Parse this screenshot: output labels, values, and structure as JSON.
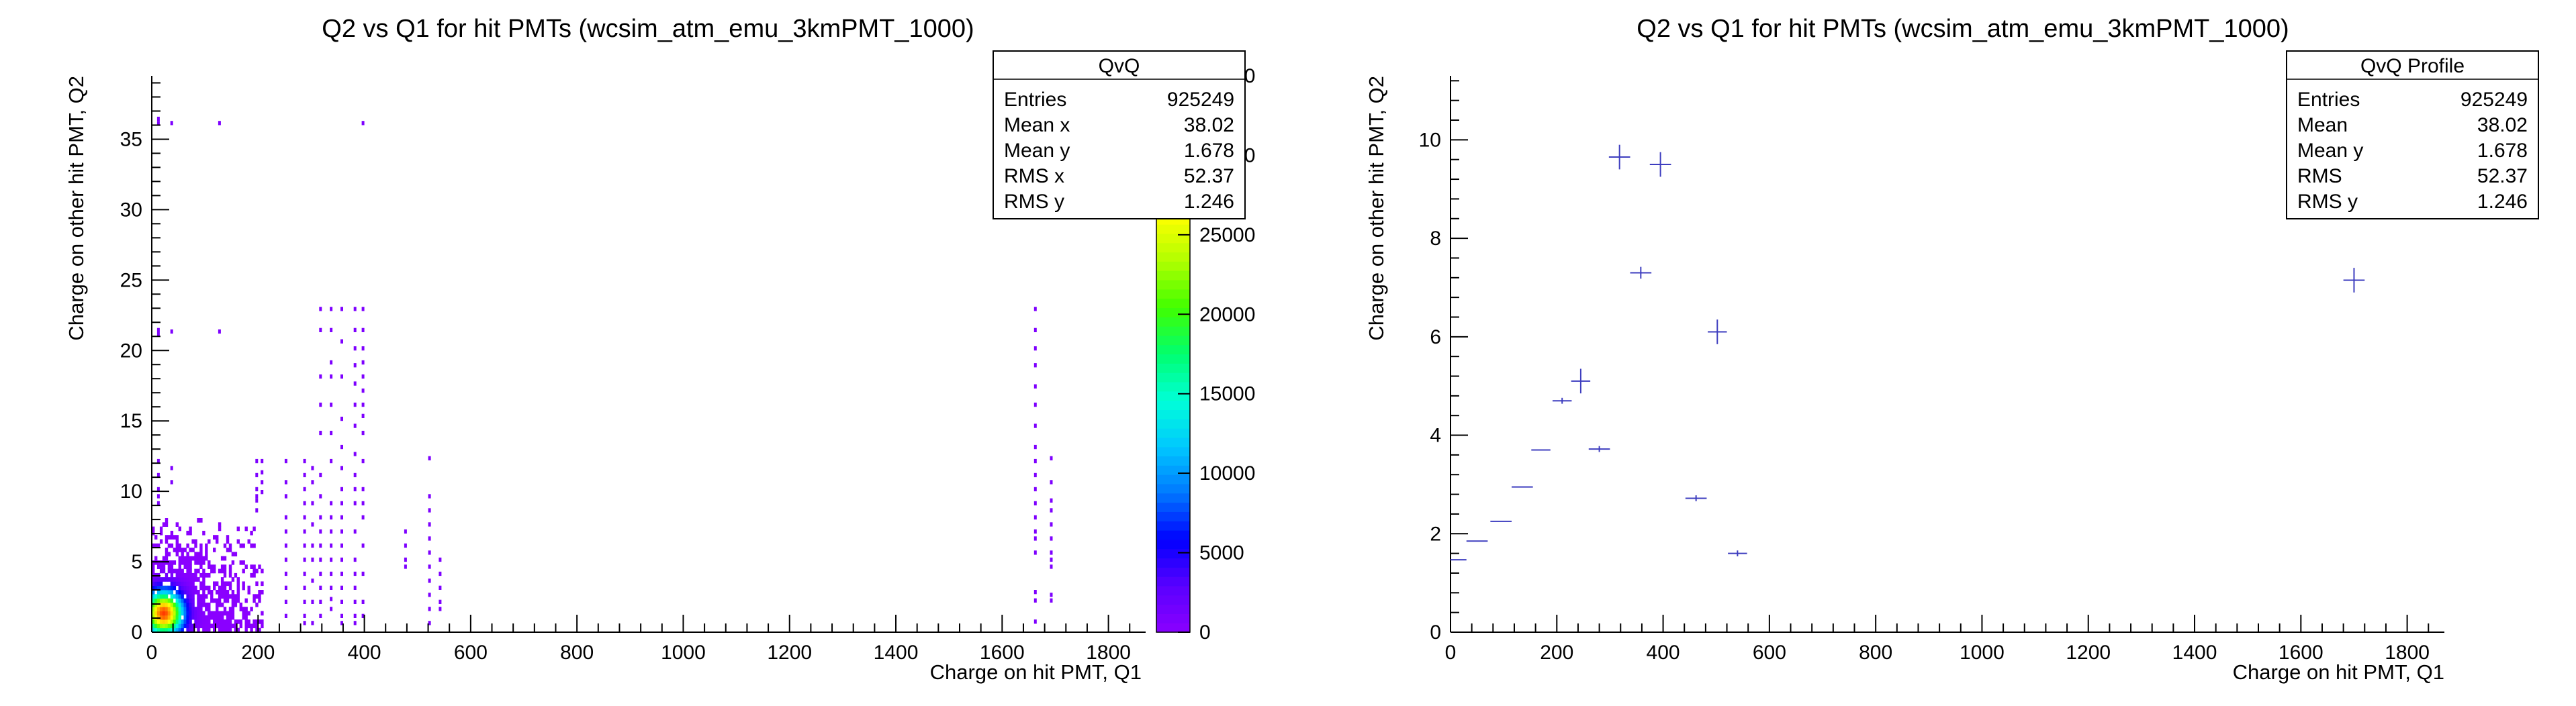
{
  "chart_data": [
    {
      "type": "heatmap",
      "title": "Q2 vs Q1 for hit PMTs (wcsim_atm_emu_3kmPMT_1000)",
      "xlabel": "Charge on hit PMT, Q1",
      "ylabel": "Charge on other hit PMT, Q2",
      "xlim": [
        0,
        1870
      ],
      "ylim": [
        0,
        39.5
      ],
      "x_ticks": [
        0,
        200,
        400,
        600,
        800,
        1000,
        1200,
        1400,
        1600,
        1800
      ],
      "y_ticks": [
        0,
        5,
        10,
        15,
        20,
        25,
        30,
        35
      ],
      "colorbar": {
        "min": 0,
        "max": 35000,
        "ticks": [
          0,
          5000,
          10000,
          15000,
          20000,
          25000,
          30000,
          35000
        ],
        "colors": [
          "#8a00ff",
          "#5a00ff",
          "#0000ff",
          "#0078ff",
          "#00c8ff",
          "#00ffd8",
          "#00ff70",
          "#40ff00",
          "#b0ff00",
          "#ffff00",
          "#ffc000",
          "#ff6000",
          "#ff0000"
        ]
      },
      "stats": {
        "name": "QvQ",
        "rows": [
          {
            "label": "Entries",
            "value": "925249"
          },
          {
            "label": "Mean x",
            "value": "38.02"
          },
          {
            "label": "Mean y",
            "value": "1.678"
          },
          {
            "label": "RMS x",
            "value": "52.37"
          },
          {
            "label": "RMS y",
            "value": "1.246"
          }
        ]
      },
      "dense_region": {
        "x": [
          0,
          210
        ],
        "y": [
          0,
          8
        ]
      },
      "hotspot": {
        "x": 20,
        "y": 1.2
      },
      "sparse_columns": [
        {
          "x": 10,
          "y": [
            21,
            21.3,
            36,
            36.3,
            12,
            11,
            10,
            9.5,
            9
          ]
        },
        {
          "x": 35,
          "y": [
            36,
            21.2,
            11.5,
            10.5
          ]
        },
        {
          "x": 125,
          "y": [
            36,
            21.2
          ]
        },
        {
          "x": 195,
          "y": [
            12,
            11,
            10,
            9.5,
            9.2,
            8.5
          ]
        },
        {
          "x": 205,
          "y": [
            12,
            11.2,
            10.5,
            9.8
          ]
        },
        {
          "x": 250,
          "y": [
            12,
            10.5,
            9.5,
            8,
            7,
            6,
            5,
            4,
            3,
            2,
            1
          ]
        },
        {
          "x": 285,
          "y": [
            12,
            11,
            10,
            9,
            8,
            7,
            6,
            5,
            4,
            3,
            2,
            1,
            0.5
          ]
        },
        {
          "x": 300,
          "y": [
            11.5,
            10.5,
            9,
            7.5,
            6,
            5,
            3.5,
            2,
            0.5
          ]
        },
        {
          "x": 315,
          "y": [
            22.8,
            21.3,
            18,
            16,
            14,
            11,
            9.5,
            8,
            7,
            6,
            5,
            4,
            3,
            2,
            1
          ]
        },
        {
          "x": 335,
          "y": [
            22.8,
            21.3,
            19,
            18,
            16,
            14,
            12,
            9,
            8,
            7,
            6,
            5,
            4,
            3,
            2.2,
            1.5
          ]
        },
        {
          "x": 355,
          "y": [
            22.8,
            20.5,
            18,
            15,
            13,
            11.5,
            10,
            9,
            8,
            7,
            6,
            5,
            4,
            3,
            2,
            1,
            0.5
          ]
        },
        {
          "x": 380,
          "y": [
            22.8,
            21.3,
            20,
            18.8,
            17.5,
            16,
            14.5,
            12.5,
            11,
            10,
            9,
            7,
            5,
            4,
            3,
            2,
            1,
            0.5
          ]
        },
        {
          "x": 395,
          "y": [
            36,
            22.8,
            21.3,
            20,
            19,
            18,
            17,
            16,
            15.2,
            14,
            12,
            10,
            9,
            8,
            6,
            4,
            2,
            1
          ]
        },
        {
          "x": 475,
          "y": [
            7,
            6,
            5,
            4.5
          ]
        },
        {
          "x": 520,
          "y": [
            12.2,
            9.5,
            8.5,
            7.5,
            6.5,
            5.5,
            4.5,
            3.5,
            2.5,
            1.5,
            0.5
          ]
        },
        {
          "x": 540,
          "y": [
            5,
            4,
            3,
            2,
            1.5
          ]
        },
        {
          "x": 1660,
          "y": [
            22.8,
            21.3,
            20,
            18.8,
            17.3,
            16,
            14.5,
            13,
            12,
            11,
            10,
            9,
            8,
            7,
            6.5,
            5.5,
            2.7,
            2.1,
            0.6
          ]
        },
        {
          "x": 1690,
          "y": [
            12.2,
            10.5,
            9.2,
            8.5,
            7.5,
            6.5,
            5.5,
            5,
            4.5,
            2.5,
            2.1
          ]
        }
      ]
    },
    {
      "type": "scatter",
      "title": "Q2 vs Q1 for hit PMTs (wcsim_atm_emu_3kmPMT_1000)",
      "xlabel": "Charge on hit PMT, Q1",
      "ylabel": "Charge on other hit PMT, Q2",
      "xlim": [
        0,
        1870
      ],
      "ylim": [
        0,
        11.3
      ],
      "x_ticks": [
        0,
        200,
        400,
        600,
        800,
        1000,
        1200,
        1400,
        1600,
        1800
      ],
      "y_ticks": [
        0,
        2,
        4,
        6,
        8,
        10
      ],
      "marker_color": "#3d3dbf",
      "stats": {
        "name": "QvQ Profile",
        "rows": [
          {
            "label": "Entries",
            "value": "925249"
          },
          {
            "label": "Mean",
            "value": "38.02"
          },
          {
            "label": "Mean y",
            "value": "1.678"
          },
          {
            "label": "RMS",
            "value": "52.37"
          },
          {
            "label": "RMS y",
            "value": "1.246"
          }
        ]
      },
      "points": [
        {
          "x": 15,
          "y": 1.47,
          "xerr": 15,
          "yerr": 0
        },
        {
          "x": 50,
          "y": 1.85,
          "xerr": 20,
          "yerr": 0
        },
        {
          "x": 95,
          "y": 2.25,
          "xerr": 20,
          "yerr": 0
        },
        {
          "x": 135,
          "y": 2.95,
          "xerr": 20,
          "yerr": 0
        },
        {
          "x": 170,
          "y": 3.7,
          "xerr": 18,
          "yerr": 0
        },
        {
          "x": 210,
          "y": 4.7,
          "xerr": 18,
          "yerr": 0.06
        },
        {
          "x": 245,
          "y": 5.1,
          "xerr": 18,
          "yerr": 0.25
        },
        {
          "x": 280,
          "y": 3.72,
          "xerr": 20,
          "yerr": 0.06
        },
        {
          "x": 318,
          "y": 9.65,
          "xerr": 20,
          "yerr": 0.25
        },
        {
          "x": 358,
          "y": 7.3,
          "xerr": 20,
          "yerr": 0.12
        },
        {
          "x": 395,
          "y": 9.5,
          "xerr": 20,
          "yerr": 0.25
        },
        {
          "x": 462,
          "y": 2.72,
          "xerr": 20,
          "yerr": 0.06
        },
        {
          "x": 502,
          "y": 6.1,
          "xerr": 18,
          "yerr": 0.25
        },
        {
          "x": 540,
          "y": 1.6,
          "xerr": 18,
          "yerr": 0.06
        },
        {
          "x": 1700,
          "y": 7.15,
          "xerr": 20,
          "yerr": 0.25
        }
      ]
    }
  ]
}
